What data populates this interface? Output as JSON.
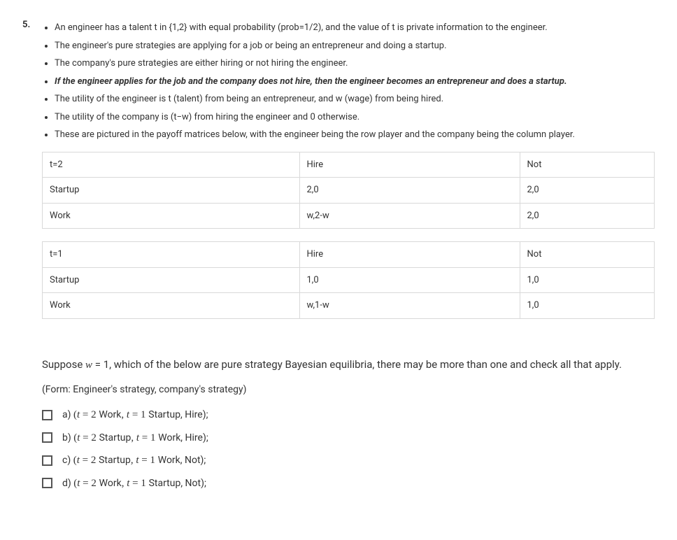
{
  "question_number": "5.",
  "bullets": [
    {
      "text": "An engineer has a talent t in {1,2} with equal probability (prob=1/2), and the value of t is private information to the engineer.",
      "emph": false
    },
    {
      "text": "The engineer's pure strategies are applying for a job or being an entrepreneur and doing a startup.",
      "emph": false
    },
    {
      "text": "The company's pure strategies are either hiring or not hiring the engineer.",
      "emph": false
    },
    {
      "text": "If the engineer applies for the job and the company does not hire, then the engineer becomes an entrepreneur and does a startup.",
      "emph": true
    },
    {
      "text": "The utility of the engineer is t (talent) from being an entrepreneur, and w (wage) from being hired.",
      "emph": false
    },
    {
      "text": "The utility of the company is (t−w) from hiring the engineer and 0 otherwise.",
      "emph": false
    },
    {
      "text": "These are pictured in the payoff matrices below, with the engineer being the row player and the company being the column player.",
      "emph": false
    }
  ],
  "tables": [
    {
      "header": [
        "t=2",
        "Hire",
        "Not"
      ],
      "rows": [
        [
          "Startup",
          "2,0",
          "2,0"
        ],
        [
          "Work",
          "w,2-w",
          "2,0"
        ]
      ]
    },
    {
      "header": [
        "t=1",
        "Hire",
        "Not"
      ],
      "rows": [
        [
          "Startup",
          "1,0",
          "1,0"
        ],
        [
          "Work",
          "w,1-w",
          "1,0"
        ]
      ]
    }
  ],
  "prompt": {
    "prefix": "Suppose ",
    "var": "w",
    "eq": " = 1",
    "suffix": ", which of the below are pure strategy Bayesian equilibria, there may be more than one and check all that apply."
  },
  "form_note": "(Form: Engineer's strategy, company's strategy)",
  "options": [
    {
      "letter": "a)",
      "t1": "2",
      "s1": "Work",
      "t2": "1",
      "s2": "Startup",
      "c": "Hire"
    },
    {
      "letter": "b)",
      "t1": "2",
      "s1": "Startup",
      "t2": "1",
      "s2": "Work",
      "c": "Hire"
    },
    {
      "letter": "c)",
      "t1": "2",
      "s1": "Startup",
      "t2": "1",
      "s2": "Work",
      "c": "Not"
    },
    {
      "letter": "d)",
      "t1": "2",
      "s1": "Work",
      "t2": "1",
      "s2": "Startup",
      "c": "Not"
    }
  ],
  "style": {
    "border_color": "#d9d9d9",
    "text_color": "#333333",
    "checkbox_border": "#555555",
    "background": "#ffffff"
  }
}
